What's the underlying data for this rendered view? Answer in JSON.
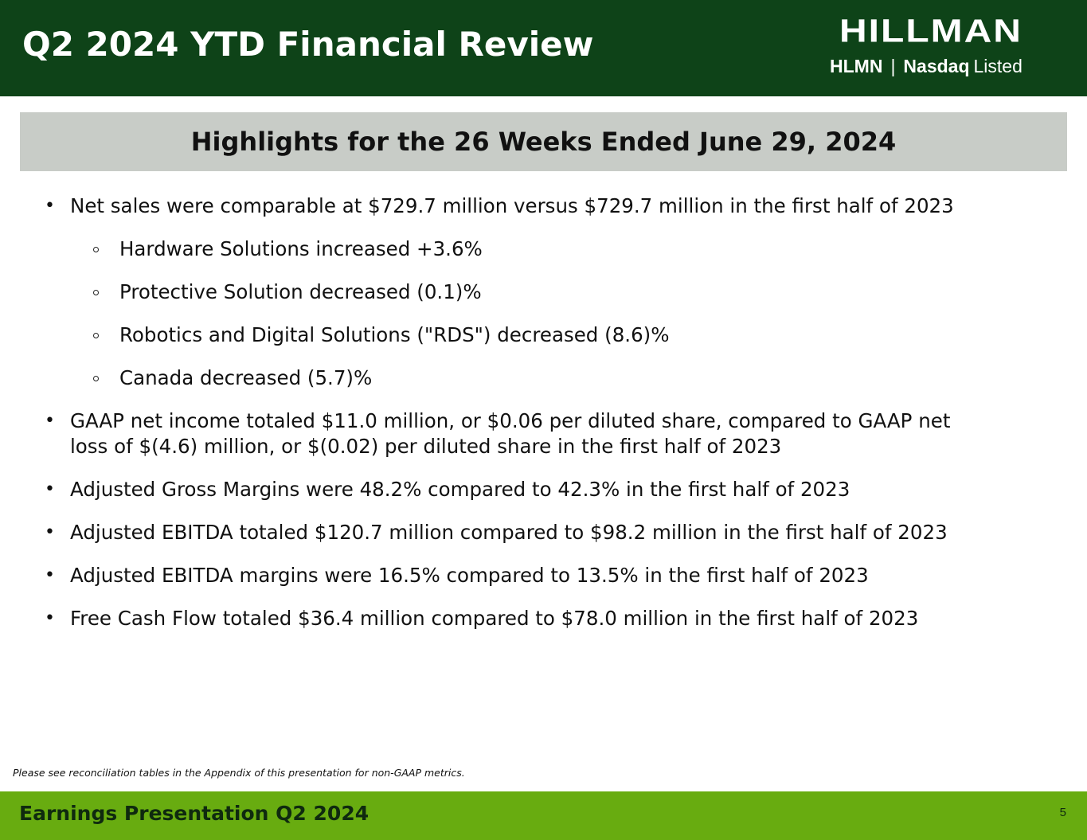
{
  "header": {
    "title": "Q2 2024 YTD Financial Review",
    "logo": {
      "wordmark": "HILLMAN",
      "ticker": "HLMN",
      "separator": "|",
      "exchange": "Nasdaq",
      "listed": "Listed"
    }
  },
  "highlights": {
    "heading": "Highlights for the 26 Weeks Ended June 29, 2024",
    "net_sales": {
      "text": "Net sales were comparable at $729.7 million versus $729.7 million in the first half of 2023",
      "segments": [
        "Hardware Solutions increased +3.6%",
        "Protective Solution decreased (0.1)%",
        "Robotics and Digital Solutions (\"RDS\") decreased (8.6)%",
        "Canada decreased (5.7)%"
      ]
    },
    "gaap_income": {
      "line1": "GAAP net income totaled $11.0 million, or $0.06 per diluted share, compared to GAAP net",
      "line2": "loss of $(4.6) million, or $(0.02) per diluted share in the first half of 2023"
    },
    "items": [
      "Adjusted Gross Margins were 48.2% compared to 42.3% in the first half of 2023",
      "Adjusted EBITDA totaled $120.7 million compared to $98.2 million in the first half of 2023",
      "Adjusted EBITDA margins were 16.5% compared to 13.5% in the first half of 2023",
      "Free Cash Flow totaled $36.4 million compared to $78.0 million in the first half of 2023"
    ]
  },
  "footnote": "Please see reconciliation tables in the Appendix of this presentation for non-GAAP metrics.",
  "footer": {
    "label": "Earnings Presentation Q2 2024",
    "page_number": "5"
  },
  "colors": {
    "header_bg": "#0e4318",
    "band_bg": "#c8ccc7",
    "footer_bg": "#68ac10"
  }
}
